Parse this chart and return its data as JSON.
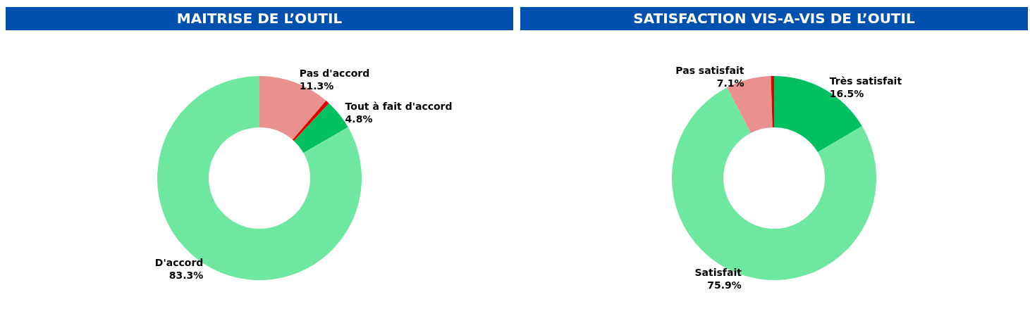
{
  "chart_data": [
    {
      "type": "donut",
      "title": "MAITRISE DE L’OUTIL",
      "categories": [
        "Pas d'accord",
        null,
        "Tout à fait d'accord",
        "D'accord"
      ],
      "values": [
        11.3,
        0.6,
        4.8,
        83.3
      ],
      "value_labels": [
        "11.3%",
        null,
        "4.8%",
        "83.3%"
      ],
      "colors": [
        "#ea918f",
        "#e00000",
        "#00c060",
        "#6ee8a0"
      ],
      "legend": false
    },
    {
      "type": "donut",
      "title": "SATISFACTION VIS-A-VIS DE L’OUTIL",
      "categories": [
        "Très satisfait",
        "Satisfait",
        "Pas satisfait",
        null
      ],
      "values": [
        16.5,
        75.9,
        7.1,
        0.5
      ],
      "value_labels": [
        "16.5%",
        "75.9%",
        "7.1%",
        null
      ],
      "colors": [
        "#00c060",
        "#6ee8a0",
        "#ea918f",
        "#e00000"
      ],
      "legend": false
    }
  ]
}
